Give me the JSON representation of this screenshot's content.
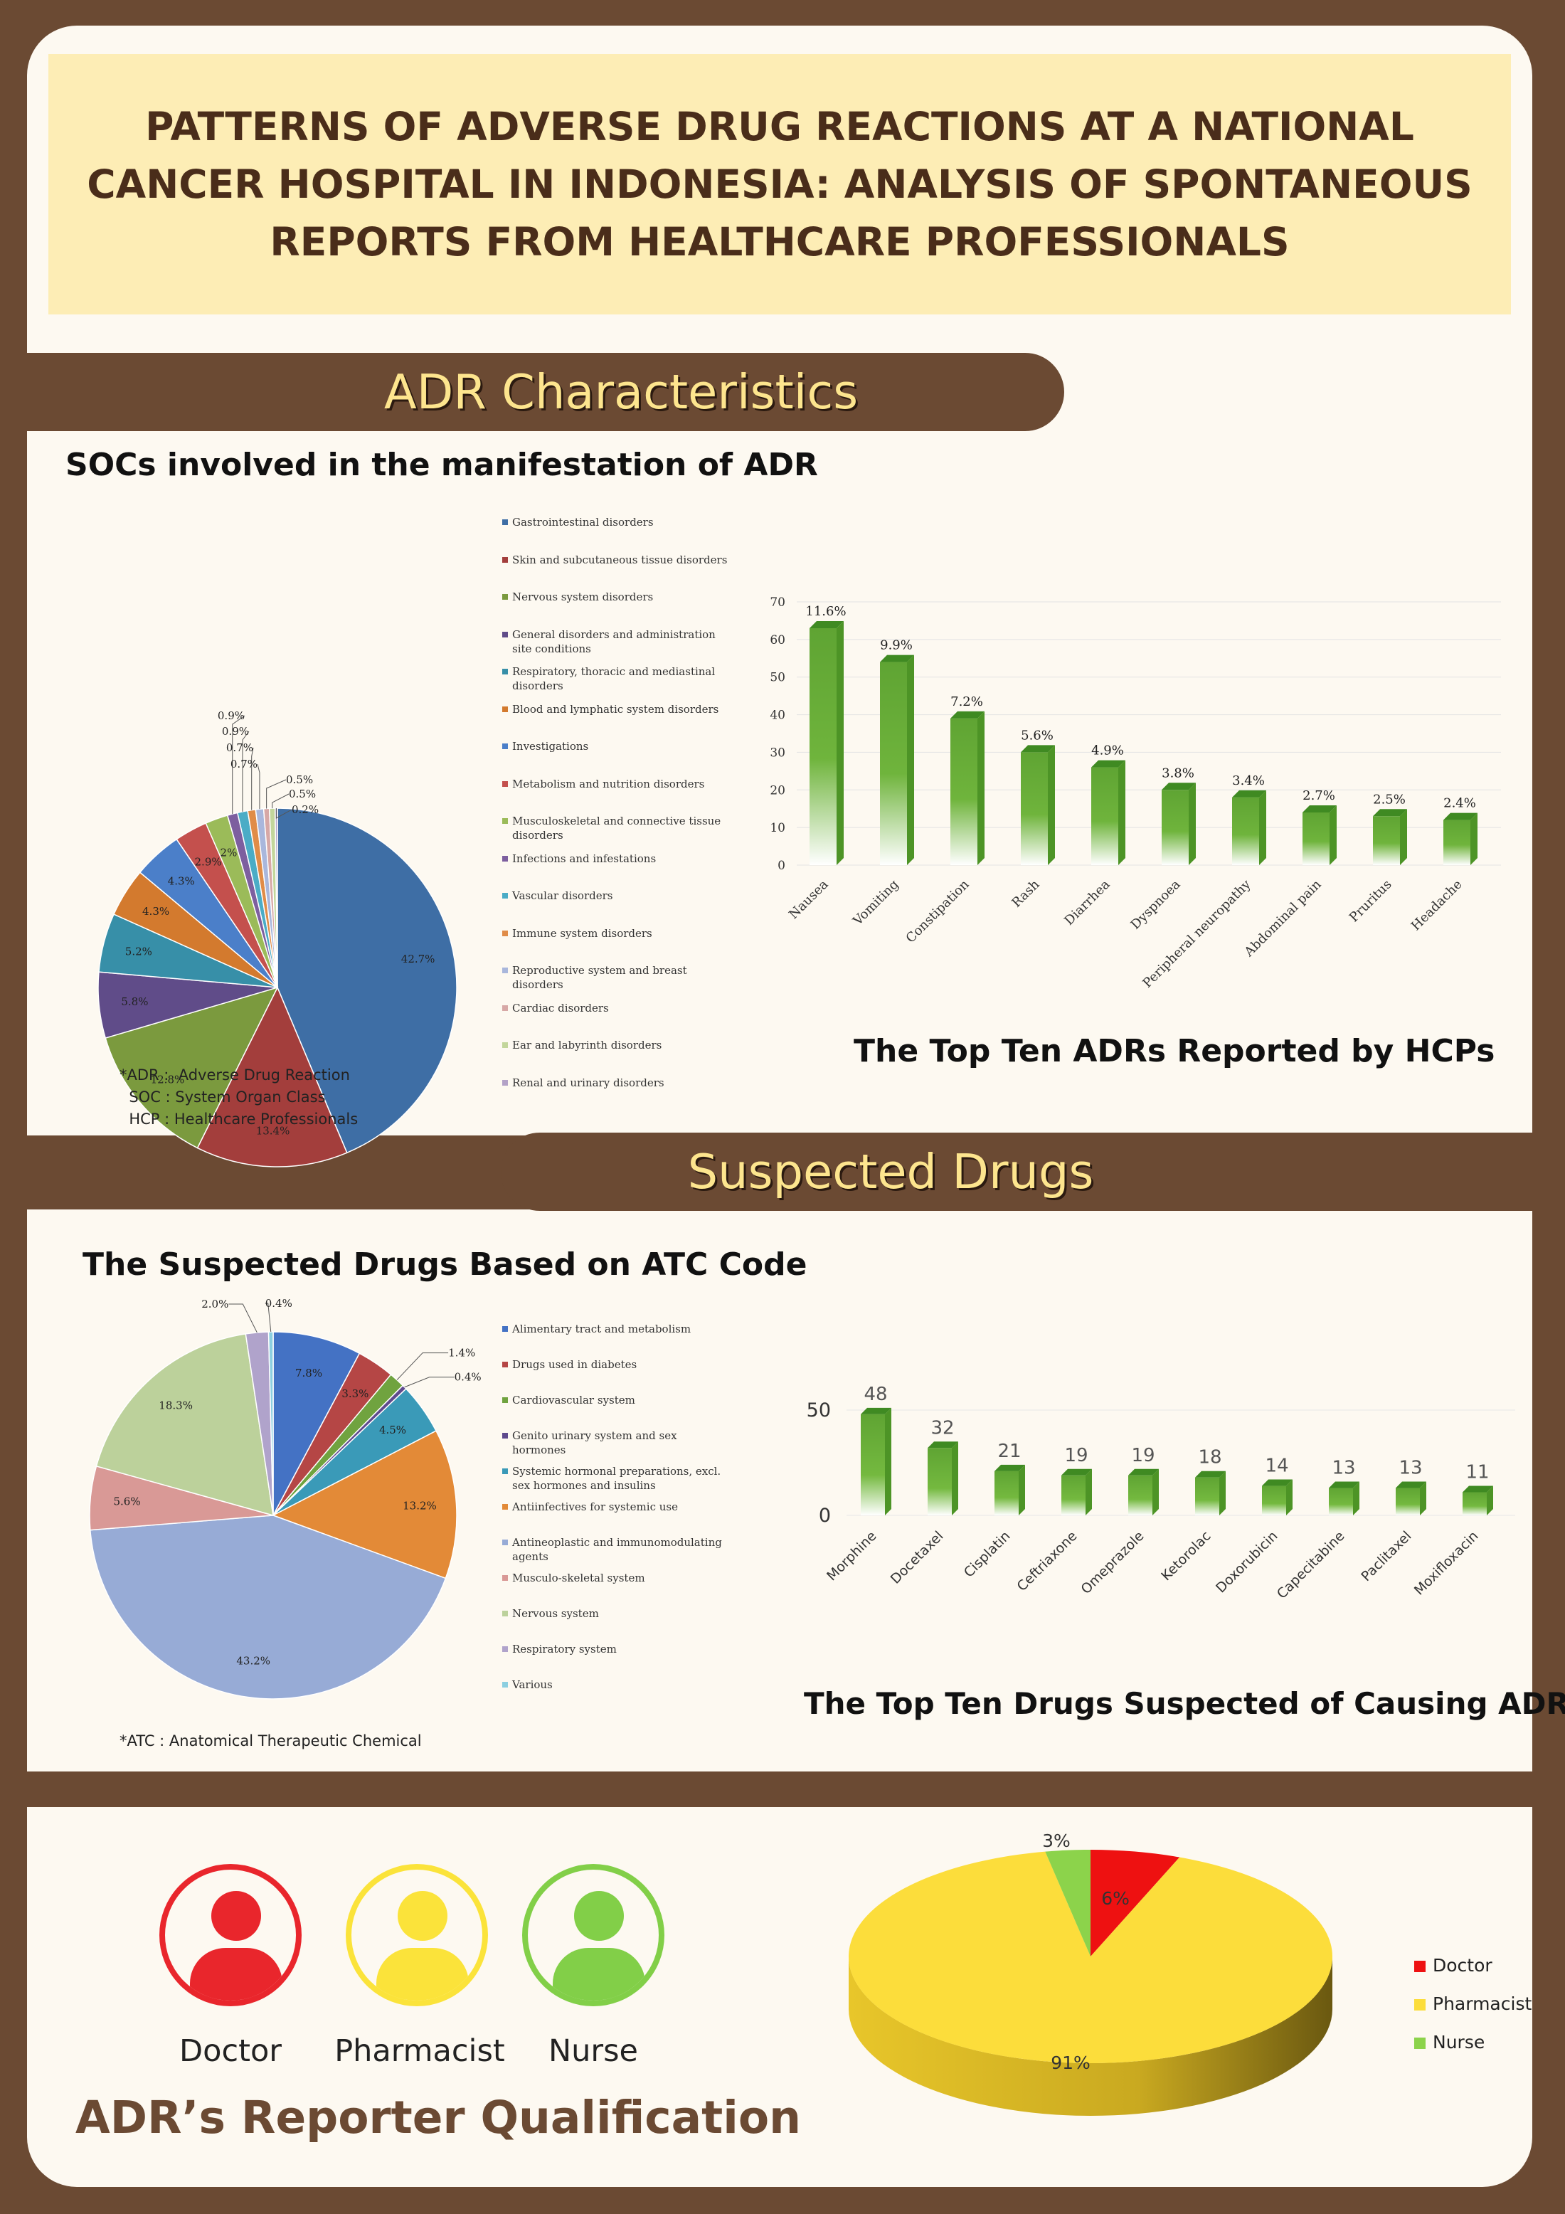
{
  "title": "PATTERNS OF ADVERSE DRUG REACTIONS AT A NATIONAL CANCER HOSPITAL IN INDONESIA: ANALYSIS OF SPONTANEOUS REPORTS FROM HEALTHCARE PROFESSIONALS",
  "sections": {
    "adr_characteristics": "ADR Characteristics",
    "suspected_drugs": "Suspected Drugs",
    "reporter": "ADR’s Reporter Qualification"
  },
  "abbreviations_adr": "*ADR :  Adverse Drug Reaction\n  SOC : System Organ Class\n  HCP : Healthcare Professionals",
  "abbreviations_atc": "*ATC : Anatomical Therapeutic Chemical",
  "reporters": {
    "doctor": "Doctor",
    "pharmacist": "Pharmacist",
    "nurse": "Nurse"
  },
  "colors": {
    "brown": "#6b4a33",
    "cream": "#fdf9f1",
    "title_bg": "#fdedb5",
    "banner_text": "#fde58e",
    "bar_green": "#6aab3a",
    "doctor_red": "#e9262c",
    "pharmacist_yellow": "#fbe33a",
    "nurse_green": "#82cf48"
  },
  "chart_data": [
    {
      "type": "pie",
      "title": "SOCs involved in the manifestation of ADR",
      "legend_position": "right",
      "labels": [
        "Gastrointestinal disorders",
        "Skin and subcutaneous tissue disorders",
        "Nervous system disorders",
        "General disorders and administration site conditions",
        "Respiratory, thoracic and mediastinal disorders",
        "Blood and lymphatic system disorders",
        "Investigations",
        "Metabolism and nutrition disorders",
        "Musculoskeletal and connective tissue disorders",
        "Infections and infestations",
        "Vascular disorders",
        "Immune system disorders",
        "Reproductive system and breast disorders",
        "Cardiac disorders",
        "Ear and labyrinth disorders",
        "Renal and urinary disorders"
      ],
      "values": [
        42.7,
        13.4,
        12.8,
        5.8,
        5.2,
        4.3,
        4.3,
        2.9,
        2,
        0.9,
        0.9,
        0.7,
        0.7,
        0.5,
        0.5,
        0.2
      ],
      "value_labels": [
        "42.7%",
        "13.4%",
        "12.8%",
        "5.8%",
        "5.2%",
        "4.3%",
        "4.3%",
        "2.9%",
        "2%",
        "0.9%",
        "0.9%",
        "0.7%",
        "0.7%",
        "0.5%",
        "0.5%",
        "0.2%"
      ],
      "colors": [
        "#3e6ea5",
        "#a33e3c",
        "#7b9a3e",
        "#604c89",
        "#378fa8",
        "#d37a2e",
        "#4b7fc9",
        "#c4504d",
        "#9bbb59",
        "#7d5f9f",
        "#4bacc6",
        "#e08c48",
        "#a9b7dc",
        "#d7a8a6",
        "#c3d69b",
        "#b3a2c7"
      ]
    },
    {
      "type": "bar",
      "title": "The Top Ten ADRs Reported by HCPs",
      "categories": [
        "Nausea",
        "Vomiting",
        "Constipation",
        "Rash",
        "Diarrhea",
        "Dyspnoea",
        "Peripheral neuropathy",
        "Abdominal pain",
        "Pruritus",
        "Headache"
      ],
      "values": [
        63,
        54,
        39,
        30,
        26,
        20,
        18,
        14,
        13,
        12
      ],
      "data_labels": [
        "11.6%",
        "9.9%",
        "7.2%",
        "5.6%",
        "4.9%",
        "3.8%",
        "3.4%",
        "2.7%",
        "2.5%",
        "2.4%"
      ],
      "yticks": [
        "0",
        "10",
        "20",
        "30",
        "40",
        "50",
        "60",
        "70"
      ],
      "ylim": [
        0,
        70
      ],
      "grid": true
    },
    {
      "type": "pie",
      "title": "The Suspected Drugs Based on ATC Code",
      "legend_position": "right",
      "labels": [
        "Alimentary tract and metabolism",
        "Drugs used in diabetes",
        "Cardiovascular system",
        "Genito urinary system and sex hormones",
        "Systemic hormonal preparations, excl. sex hormones and insulins",
        "Antiinfectives for systemic use",
        "Antineoplastic and immunomodulating agents",
        "Musculo-skeletal system",
        "Nervous system",
        "Respiratory system",
        "Various"
      ],
      "values": [
        7.8,
        3.3,
        1.4,
        0.4,
        4.5,
        13.2,
        43.2,
        5.6,
        18.3,
        2.0,
        0.4
      ],
      "value_labels": [
        "7.8%",
        "3.3%",
        "1.4%",
        "0.4%",
        "4.5%",
        "13.2%",
        "43.2%",
        "5.6%",
        "18.3%",
        "2.0%",
        "0.4%"
      ],
      "colors": [
        "#4472c4",
        "#b54645",
        "#70a33f",
        "#5e4a8d",
        "#3a9ab8",
        "#e38a37",
        "#97abd6",
        "#d99996",
        "#bcd19b",
        "#b0a3cb",
        "#8ccfe0"
      ]
    },
    {
      "type": "bar",
      "title": "The Top Ten Drugs Suspected of Causing ADRs",
      "categories": [
        "Morphine",
        "Docetaxel",
        "Cisplatin",
        "Ceftriaxone",
        "Omeprazole",
        "Ketorolac",
        "Doxorubicin",
        "Capecitabine",
        "Paclitaxel",
        "Moxifloxacin"
      ],
      "values": [
        48,
        32,
        21,
        19,
        19,
        18,
        14,
        13,
        13,
        11
      ],
      "yticks": [
        "0",
        "50"
      ],
      "ylim": [
        0,
        50
      ],
      "grid": true
    },
    {
      "type": "pie",
      "title": "",
      "legend_position": "right",
      "labels": [
        "Doctor",
        "Pharmacist",
        "Nurse"
      ],
      "values": [
        6,
        91,
        3
      ],
      "value_labels": [
        "6%",
        "91%",
        "3%"
      ],
      "colors": [
        "#ee1111",
        "#fcdd3b",
        "#8cd34b"
      ]
    }
  ]
}
